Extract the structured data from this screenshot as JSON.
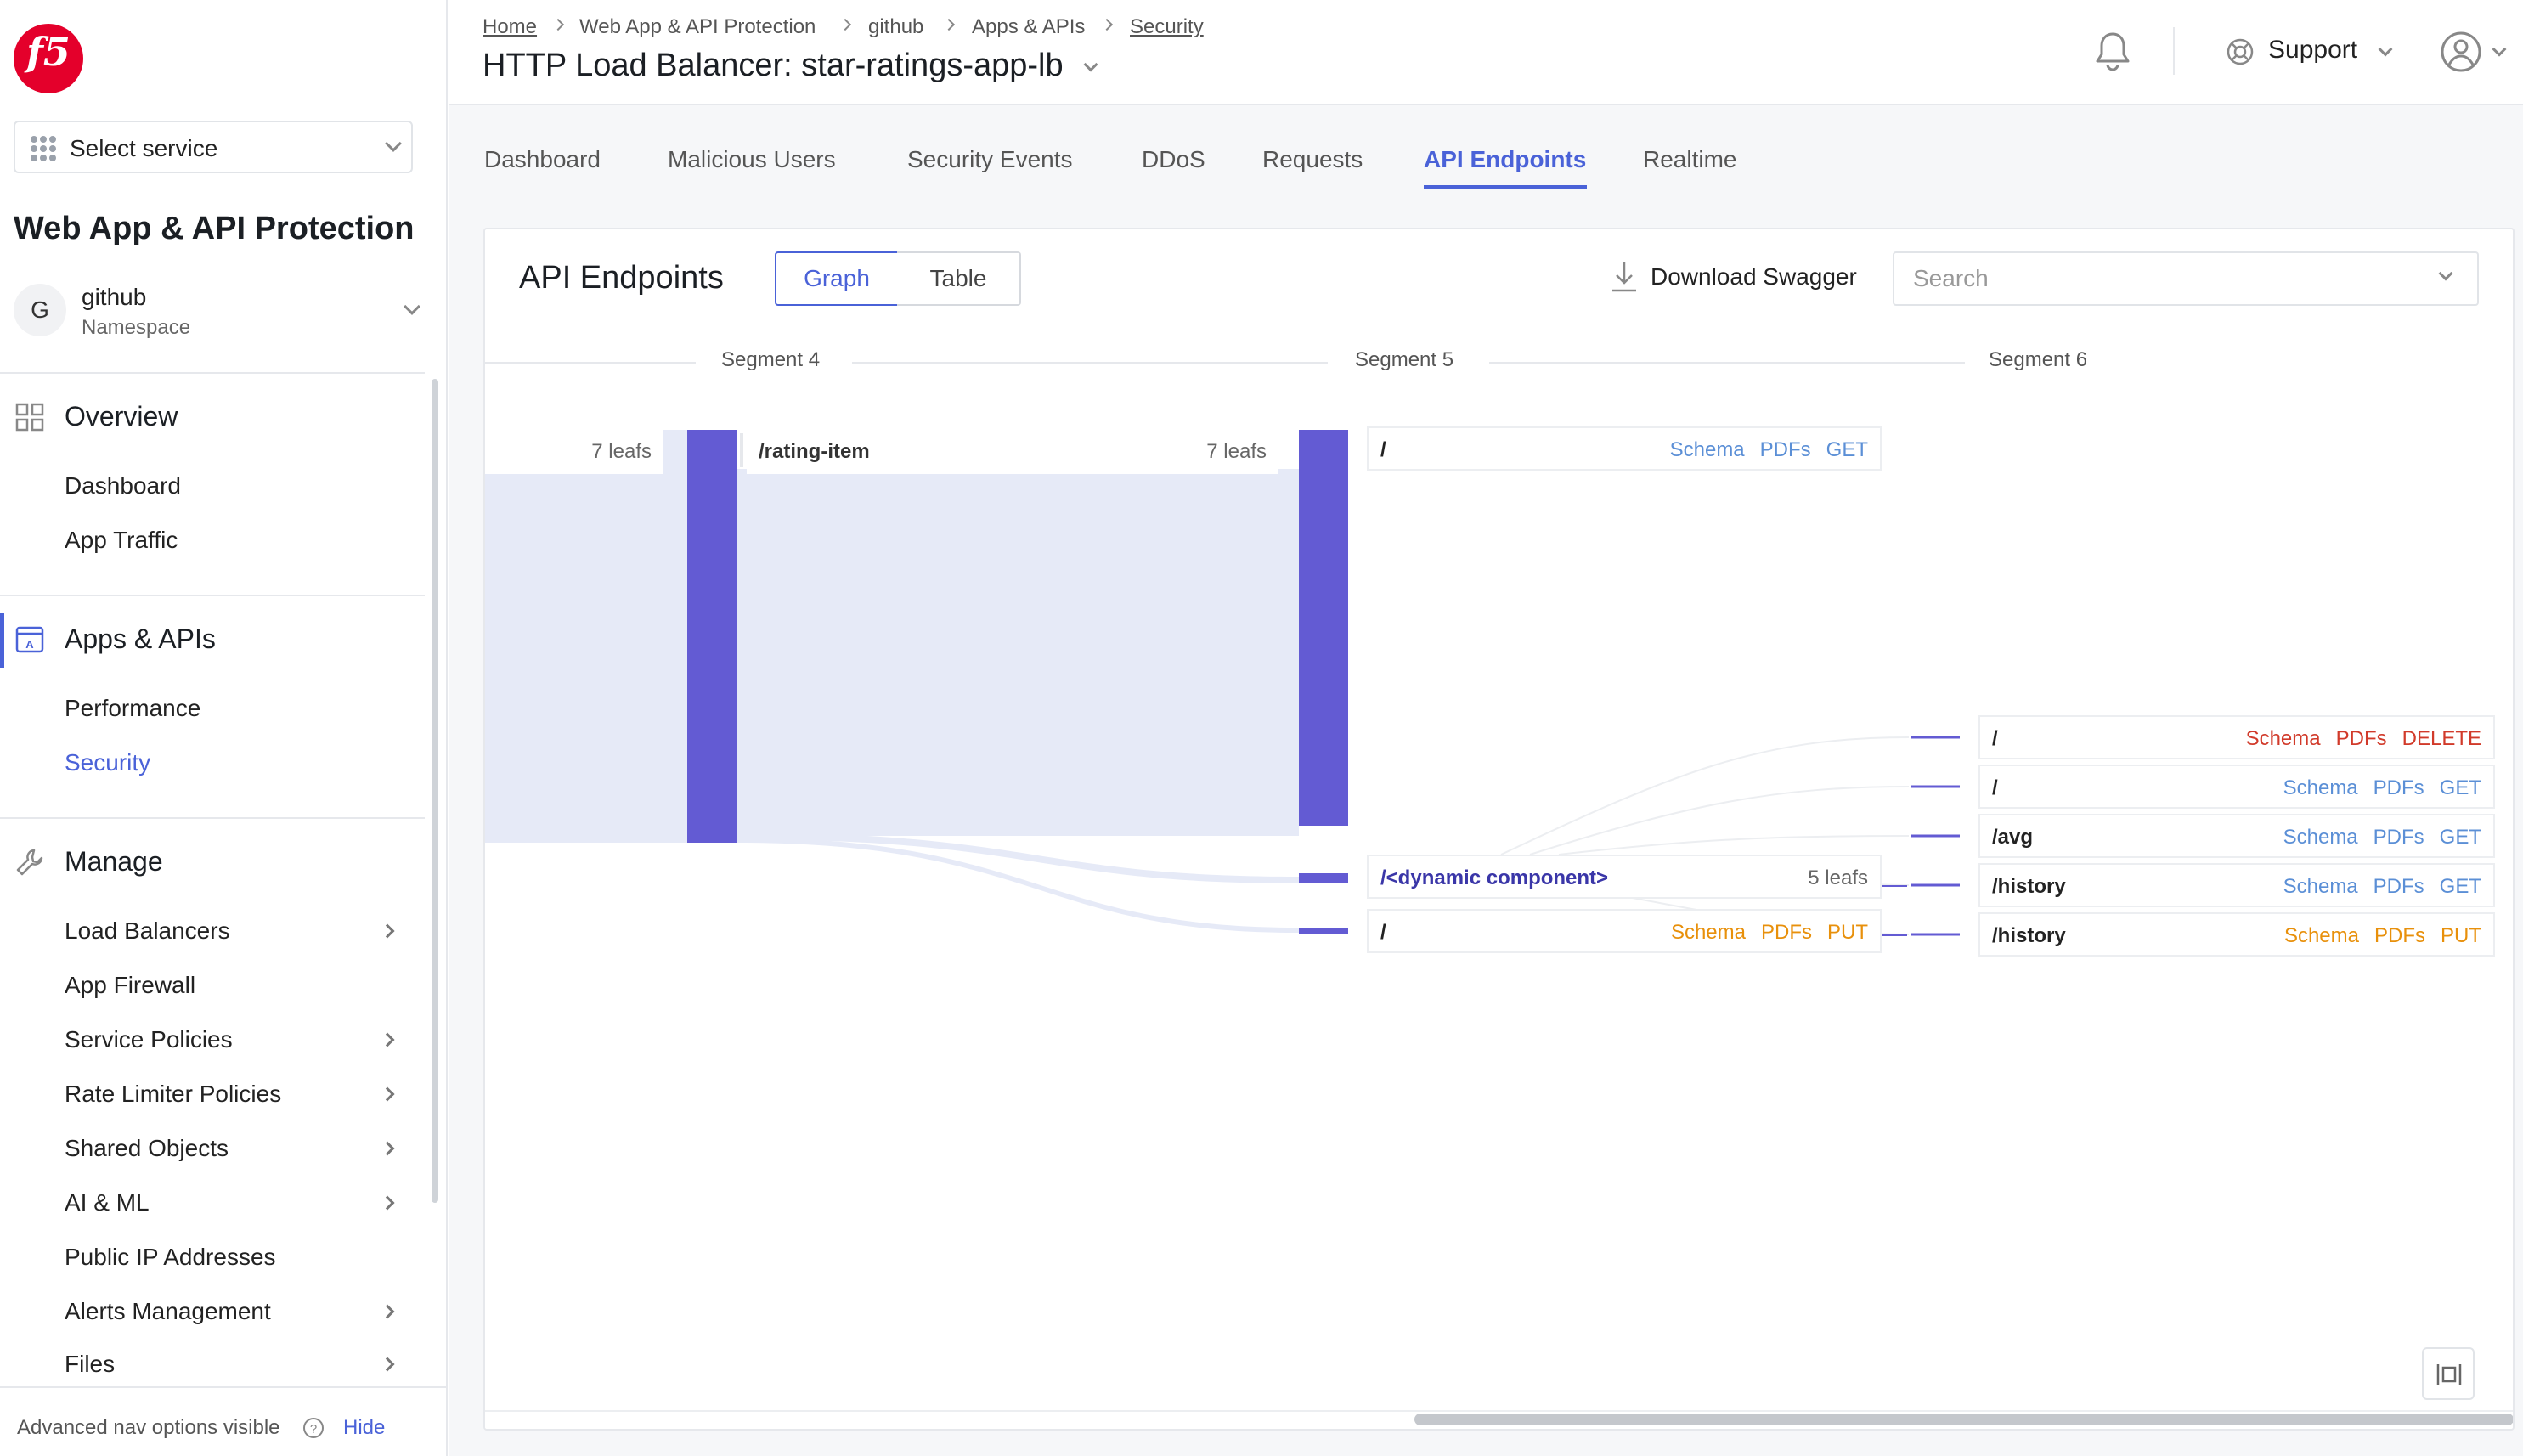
{
  "sidebar": {
    "service_select": "Select service",
    "app_title": "Web App & API Protection",
    "namespace": {
      "avatar": "G",
      "name": "github",
      "label": "Namespace"
    },
    "sections": [
      {
        "title": "Overview",
        "items": [
          "Dashboard",
          "App Traffic"
        ]
      },
      {
        "title": "Apps & APIs",
        "items": [
          "Performance",
          "Security"
        ]
      },
      {
        "title": "Manage",
        "items": [
          "Load Balancers",
          "App Firewall",
          "Service Policies",
          "Rate Limiter Policies",
          "Shared Objects",
          "AI & ML",
          "Public IP Addresses",
          "Alerts Management",
          "Files"
        ]
      }
    ],
    "footer": {
      "text": "Advanced nav options visible",
      "hide": "Hide"
    }
  },
  "header": {
    "breadcrumb": [
      "Home",
      "Web App & API Protection",
      "github",
      "Apps & APIs",
      "Security"
    ],
    "title": "HTTP Load Balancer: star-ratings-app-lb",
    "support": "Support"
  },
  "tabs": [
    "Dashboard",
    "Malicious Users",
    "Security Events",
    "DDoS",
    "Requests",
    "API Endpoints",
    "Realtime"
  ],
  "card": {
    "title": "API Endpoints",
    "view_toggle": [
      "Graph",
      "Table"
    ],
    "download": "Download Swagger",
    "search_placeholder": "Search",
    "segments": [
      "Segment 4",
      "Segment 5",
      "Segment 6"
    ]
  },
  "graph": {
    "root": {
      "leafs": "7 leafs"
    },
    "rating_item": {
      "path": "/rating-item",
      "leafs": "7 leafs"
    },
    "seg5": [
      {
        "path": "/",
        "links": [
          "Schema",
          "PDFs",
          "GET"
        ]
      },
      {
        "path": "/<dynamic component>",
        "leafs": "5 leafs"
      },
      {
        "path": "/",
        "links": [
          "Schema",
          "PDFs",
          "PUT"
        ]
      }
    ],
    "seg6": [
      {
        "path": "/",
        "links": [
          "Schema",
          "PDFs",
          "DELETE"
        ]
      },
      {
        "path": "/",
        "links": [
          "Schema",
          "PDFs",
          "GET"
        ]
      },
      {
        "path": "/avg",
        "links": [
          "Schema",
          "PDFs",
          "GET"
        ]
      },
      {
        "path": "/history",
        "links": [
          "Schema",
          "PDFs",
          "GET"
        ]
      },
      {
        "path": "/history",
        "links": [
          "Schema",
          "PDFs",
          "PUT"
        ]
      }
    ]
  },
  "colors": {
    "accent": "#4a62d8",
    "bar": "#635bd3",
    "get": "#5b8fd6",
    "put": "#e8900b",
    "delete": "#d13a2a",
    "flow": "#e6eaf7"
  }
}
